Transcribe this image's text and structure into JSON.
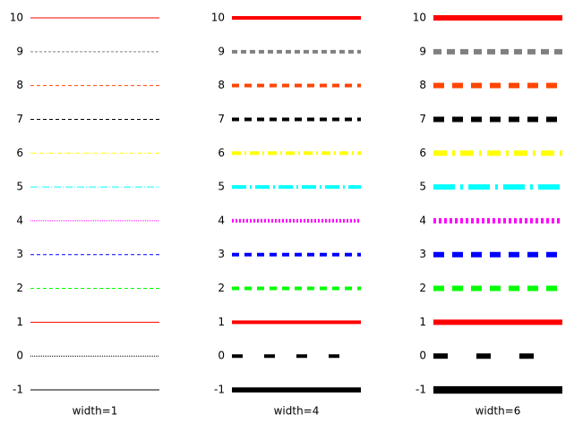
{
  "panels": [
    {
      "label": "width=1",
      "line_width": 1
    },
    {
      "label": "width=4",
      "line_width": 4
    },
    {
      "label": "width=6",
      "line_width": 6
    }
  ],
  "rows": [
    {
      "label": "10",
      "color": "#ff0000",
      "dash": "solid"
    },
    {
      "label": "9",
      "color": "#808080",
      "dash": "fine-dash"
    },
    {
      "label": "8",
      "color": "#ff4500",
      "dash": "dash"
    },
    {
      "label": "7",
      "color": "#000000",
      "dash": "dash"
    },
    {
      "label": "6",
      "color": "#ffff00",
      "dash": "dash-dot"
    },
    {
      "label": "5",
      "color": "#00ffff",
      "dash": "long-dash-dot"
    },
    {
      "label": "4",
      "color": "#ff00ff",
      "dash": "dot"
    },
    {
      "label": "3",
      "color": "#0000ff",
      "dash": "dash"
    },
    {
      "label": "2",
      "color": "#00ff00",
      "dash": "dash"
    },
    {
      "label": "1",
      "color": "#ff0000",
      "dash": "solid"
    },
    {
      "label": "0",
      "color": "#000000",
      "dash": "sparse-dash"
    },
    {
      "label": "-1",
      "color": "#000000",
      "dash": "solid"
    }
  ]
}
